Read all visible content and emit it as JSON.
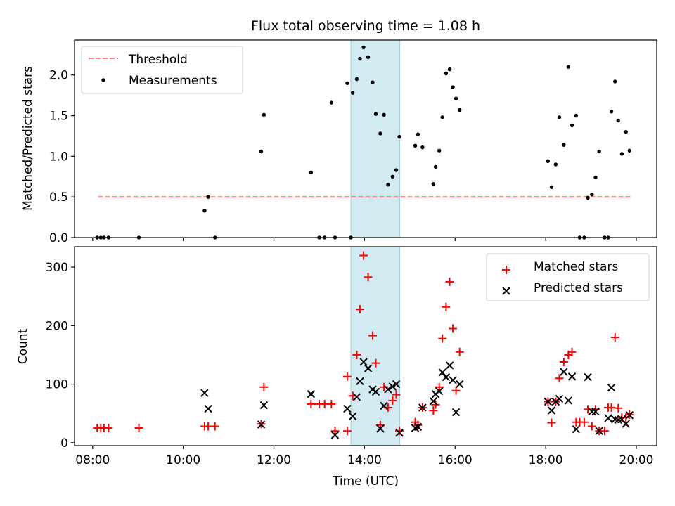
{
  "title": "Flux total observing time = 1.08 h",
  "colors": {
    "threshold": "#ff7f7f",
    "measurements": "#000000",
    "matched": "#ff0000",
    "predicted": "#000000",
    "shade": "#add8e6"
  },
  "chart_data": [
    {
      "type": "scatter",
      "ylabel": "Matched/Predicted stars",
      "xlim": [
        7.6,
        20.45
      ],
      "ylim": [
        0,
        2.43
      ],
      "yticks": [
        "0.0",
        "0.5",
        "1.0",
        "1.5",
        "2.0"
      ],
      "legend_position": "upper-left",
      "shaded_span": [
        13.7,
        14.78
      ],
      "threshold": {
        "name": "Threshold",
        "y": 0.5,
        "x": [
          8.12,
          19.88
        ]
      },
      "series": [
        {
          "name": "Measurements",
          "points": [
            [
              8.1,
              0.0
            ],
            [
              8.18,
              0.0
            ],
            [
              8.25,
              0.0
            ],
            [
              8.35,
              0.0
            ],
            [
              9.02,
              0.0
            ],
            [
              10.47,
              0.33
            ],
            [
              10.55,
              0.5
            ],
            [
              10.7,
              0.0
            ],
            [
              11.72,
              1.06
            ],
            [
              11.78,
              1.51
            ],
            [
              12.82,
              0.8
            ],
            [
              13.0,
              0.0
            ],
            [
              13.12,
              0.0
            ],
            [
              13.35,
              0.0
            ],
            [
              13.27,
              1.66
            ],
            [
              13.62,
              1.9
            ],
            [
              13.7,
              0.0
            ],
            [
              13.74,
              1.78
            ],
            [
              13.83,
              1.95
            ],
            [
              13.9,
              2.2
            ],
            [
              13.98,
              2.34
            ],
            [
              14.08,
              2.22
            ],
            [
              14.18,
              1.91
            ],
            [
              14.25,
              1.52
            ],
            [
              14.35,
              1.28
            ],
            [
              14.43,
              1.51
            ],
            [
              14.52,
              0.65
            ],
            [
              14.62,
              0.75
            ],
            [
              14.7,
              0.83
            ],
            [
              14.77,
              1.24
            ],
            [
              15.12,
              1.13
            ],
            [
              15.18,
              1.27
            ],
            [
              15.28,
              1.11
            ],
            [
              15.52,
              0.66
            ],
            [
              15.57,
              0.87
            ],
            [
              15.65,
              1.07
            ],
            [
              15.72,
              1.48
            ],
            [
              15.8,
              2.02
            ],
            [
              15.88,
              2.07
            ],
            [
              15.95,
              1.85
            ],
            [
              16.02,
              1.71
            ],
            [
              16.1,
              1.57
            ],
            [
              18.05,
              0.94
            ],
            [
              18.13,
              0.62
            ],
            [
              18.22,
              0.9
            ],
            [
              18.3,
              1.48
            ],
            [
              18.4,
              1.14
            ],
            [
              18.5,
              2.1
            ],
            [
              18.58,
              1.38
            ],
            [
              18.67,
              1.5
            ],
            [
              18.75,
              0.0
            ],
            [
              18.85,
              0.0
            ],
            [
              18.93,
              0.49
            ],
            [
              19.02,
              0.53
            ],
            [
              19.1,
              0.74
            ],
            [
              19.18,
              1.06
            ],
            [
              19.3,
              0.0
            ],
            [
              19.38,
              0.0
            ],
            [
              19.45,
              1.55
            ],
            [
              19.53,
              1.92
            ],
            [
              19.6,
              1.44
            ],
            [
              19.68,
              1.03
            ],
            [
              19.77,
              1.3
            ],
            [
              19.85,
              1.07
            ]
          ]
        }
      ]
    },
    {
      "type": "scatter",
      "xlabel": "Time (UTC)",
      "ylabel": "Count",
      "xlim": [
        7.6,
        20.45
      ],
      "ylim": [
        -5,
        335
      ],
      "yticks": [
        "0",
        "100",
        "200",
        "300"
      ],
      "xticks": [
        "08:00",
        "10:00",
        "12:00",
        "14:00",
        "16:00",
        "18:00",
        "20:00"
      ],
      "legend_position": "upper-right",
      "shaded_span": [
        13.7,
        14.78
      ],
      "series": [
        {
          "name": "Matched stars",
          "marker": "plus",
          "points": [
            [
              8.1,
              25
            ],
            [
              8.18,
              25
            ],
            [
              8.25,
              25
            ],
            [
              8.35,
              25
            ],
            [
              9.02,
              25
            ],
            [
              10.47,
              28
            ],
            [
              10.55,
              28
            ],
            [
              10.7,
              28
            ],
            [
              11.72,
              32
            ],
            [
              11.78,
              95
            ],
            [
              12.82,
              66
            ],
            [
              13.0,
              66
            ],
            [
              13.12,
              66
            ],
            [
              13.27,
              66
            ],
            [
              13.35,
              20
            ],
            [
              13.62,
              20
            ],
            [
              13.62,
              113
            ],
            [
              13.74,
              80
            ],
            [
              13.83,
              150
            ],
            [
              13.9,
              228
            ],
            [
              13.98,
              320
            ],
            [
              14.08,
              283
            ],
            [
              14.18,
              183
            ],
            [
              14.25,
              136
            ],
            [
              14.35,
              30
            ],
            [
              14.43,
              95
            ],
            [
              14.52,
              60
            ],
            [
              14.62,
              72
            ],
            [
              14.7,
              82
            ],
            [
              14.77,
              20
            ],
            [
              15.12,
              35
            ],
            [
              15.18,
              30
            ],
            [
              15.28,
              60
            ],
            [
              15.52,
              55
            ],
            [
              15.57,
              65
            ],
            [
              15.65,
              95
            ],
            [
              15.72,
              178
            ],
            [
              15.8,
              232
            ],
            [
              15.88,
              275
            ],
            [
              15.95,
              195
            ],
            [
              16.02,
              89
            ],
            [
              16.1,
              155
            ],
            [
              18.05,
              70
            ],
            [
              18.13,
              34
            ],
            [
              18.22,
              70
            ],
            [
              18.3,
              110
            ],
            [
              18.4,
              138
            ],
            [
              18.5,
              150
            ],
            [
              18.58,
              155
            ],
            [
              18.67,
              35
            ],
            [
              18.75,
              35
            ],
            [
              18.85,
              35
            ],
            [
              18.93,
              57
            ],
            [
              19.02,
              28
            ],
            [
              19.1,
              57
            ],
            [
              19.18,
              20
            ],
            [
              19.3,
              20
            ],
            [
              19.38,
              60
            ],
            [
              19.45,
              60
            ],
            [
              19.53,
              180
            ],
            [
              19.6,
              59
            ],
            [
              19.68,
              43
            ],
            [
              19.77,
              43
            ],
            [
              19.85,
              48
            ]
          ]
        },
        {
          "name": "Predicted stars",
          "marker": "x",
          "points": [
            [
              10.47,
              85
            ],
            [
              10.55,
              58
            ],
            [
              11.72,
              31
            ],
            [
              11.78,
              64
            ],
            [
              12.82,
              83
            ],
            [
              13.35,
              13
            ],
            [
              13.62,
              58
            ],
            [
              13.74,
              45
            ],
            [
              13.83,
              78
            ],
            [
              13.9,
              105
            ],
            [
              13.98,
              138
            ],
            [
              14.08,
              127
            ],
            [
              14.18,
              91
            ],
            [
              14.25,
              87
            ],
            [
              14.35,
              24
            ],
            [
              14.43,
              63
            ],
            [
              14.52,
              91
            ],
            [
              14.62,
              96
            ],
            [
              14.7,
              100
            ],
            [
              14.77,
              17
            ],
            [
              15.12,
              25
            ],
            [
              15.18,
              27
            ],
            [
              15.28,
              60
            ],
            [
              15.52,
              71
            ],
            [
              15.57,
              83
            ],
            [
              15.65,
              88
            ],
            [
              15.72,
              120
            ],
            [
              15.8,
              112
            ],
            [
              15.88,
              132
            ],
            [
              15.95,
              107
            ],
            [
              16.02,
              52
            ],
            [
              16.1,
              100
            ],
            [
              18.05,
              70
            ],
            [
              18.13,
              55
            ],
            [
              18.22,
              70
            ],
            [
              18.3,
              75
            ],
            [
              18.4,
              121
            ],
            [
              18.5,
              72
            ],
            [
              18.58,
              113
            ],
            [
              18.67,
              23
            ],
            [
              18.93,
              112
            ],
            [
              19.02,
              53
            ],
            [
              19.1,
              53
            ],
            [
              19.18,
              20
            ],
            [
              19.38,
              42
            ],
            [
              19.45,
              94
            ],
            [
              19.53,
              40
            ],
            [
              19.6,
              39
            ],
            [
              19.68,
              40
            ],
            [
              19.77,
              32
            ],
            [
              19.85,
              47
            ]
          ]
        }
      ]
    }
  ]
}
